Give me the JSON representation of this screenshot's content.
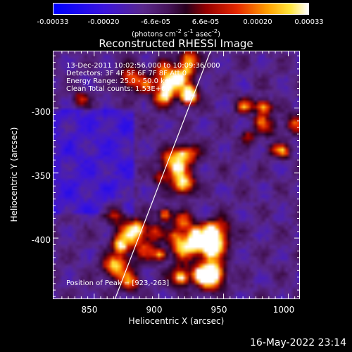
{
  "colorbar": {
    "ticks": [
      "-0.00033",
      "-0.00020",
      "-6.6e-05",
      "6.6e-05",
      "0.00020",
      "0.00033"
    ],
    "unit_prefix": "(photons cm",
    "unit_exp1": "-2",
    "unit_mid": " s",
    "unit_exp2": "-1",
    "unit_mid2": " asec",
    "unit_exp3": "-2",
    "unit_suffix": ")"
  },
  "chart_data": {
    "type": "heatmap",
    "title": "Reconstructed RHESSI Image",
    "xlabel": "Heliocentric X (arcsec)",
    "ylabel": "Heliocentric Y (arcsec)",
    "xlim": [
      818,
      1009
    ],
    "ylim": [
      -447,
      -256
    ],
    "xticks": [
      "850",
      "900",
      "950",
      "1000"
    ],
    "yticks": [
      "-300",
      "-350",
      "-400"
    ],
    "colorscale_range": [
      -0.00033,
      0.00033
    ],
    "peak": [
      923,
      -263
    ],
    "limb_line": [
      [
        866,
        -447
      ],
      [
        940,
        -256
      ]
    ],
    "annotations": [
      "13-Dec-2011 10:02:56.000 to 10:09:36.000",
      "Detectors: 3F 4F 5F 6F 7F 8F  Att 0",
      "Energy Range: 25.0 - 50.0 keV",
      "Clean     Total counts: 1.53E+04"
    ],
    "peak_label": "Position of Peak = [923,-263]"
  },
  "footer": {
    "timestamp": "16-May-2022 23:14"
  }
}
